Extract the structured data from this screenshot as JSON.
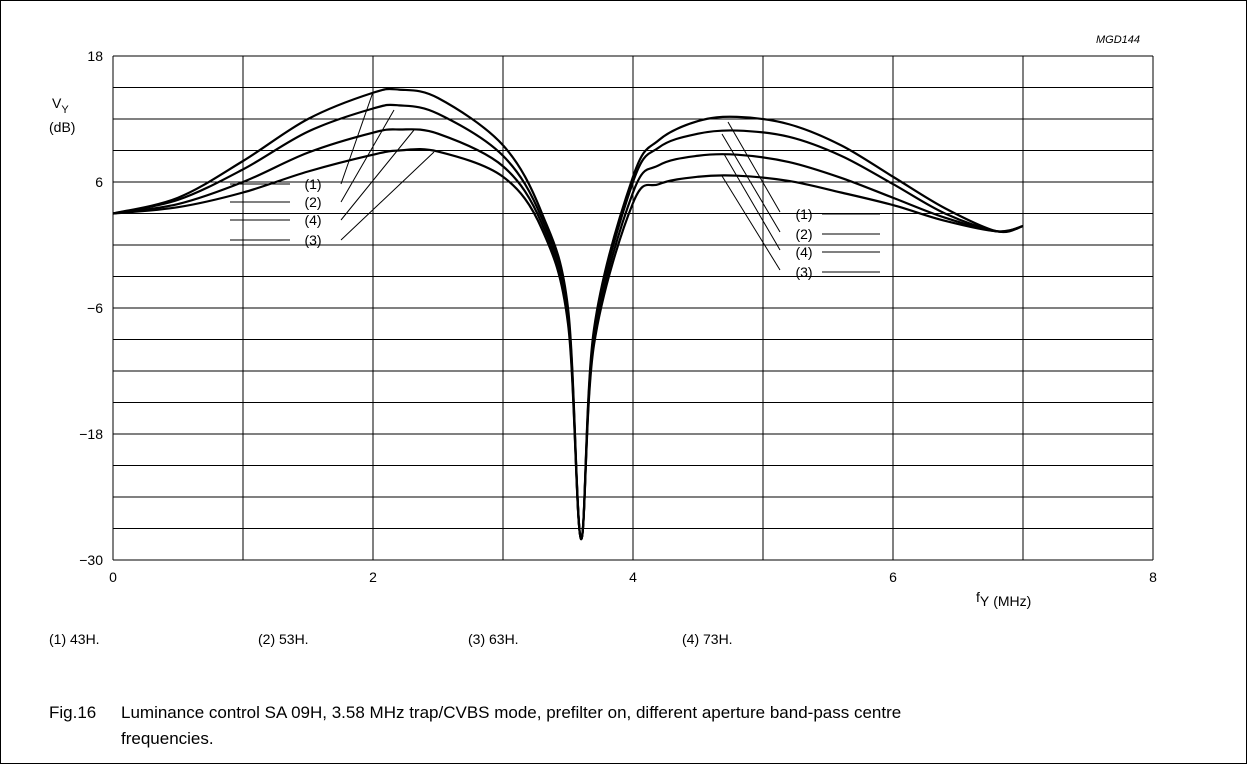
{
  "figure_code": "MGD144",
  "chart_data": {
    "type": "line",
    "ylabel": "V",
    "ylabel_sub": "Y",
    "yunit": "(dB)",
    "xlabel": "f",
    "xlabel_sub": "Y",
    "xunit": "(MHz)",
    "xlim": [
      0,
      8
    ],
    "ylim": [
      -30,
      18
    ],
    "xticks": [
      0,
      2,
      4,
      6,
      8
    ],
    "yticks": [
      -30,
      -18,
      -6,
      6,
      18
    ],
    "grid": true,
    "series": [
      {
        "label": "(1)",
        "x": [
          0,
          0.5,
          1.0,
          1.5,
          2.0,
          2.2,
          2.5,
          3.0,
          3.3,
          3.5,
          3.6,
          3.7,
          4.0,
          4.2,
          4.5,
          4.8,
          5.2,
          5.6,
          6.0,
          6.4,
          6.8,
          7.0
        ],
        "y": [
          3.0,
          4.5,
          8.0,
          12.0,
          14.5,
          14.8,
          14.0,
          9.5,
          3.0,
          -6.0,
          -28.0,
          -8.0,
          6.5,
          10.0,
          11.8,
          12.2,
          11.5,
          9.5,
          6.5,
          3.5,
          1.3,
          1.8
        ]
      },
      {
        "label": "(2)",
        "x": [
          0,
          0.5,
          1.0,
          1.5,
          2.0,
          2.2,
          2.5,
          3.0,
          3.3,
          3.5,
          3.6,
          3.7,
          4.0,
          4.2,
          4.5,
          4.8,
          5.2,
          5.6,
          6.0,
          6.4,
          6.8,
          7.0
        ],
        "y": [
          3.0,
          4.3,
          7.2,
          10.8,
          13.0,
          13.3,
          12.5,
          8.5,
          2.5,
          -6.5,
          -28.0,
          -8.5,
          6.0,
          9.3,
          10.6,
          10.9,
          10.3,
          8.5,
          5.8,
          3.0,
          1.3,
          1.8
        ]
      },
      {
        "label": "(4)",
        "x": [
          0,
          0.5,
          1.0,
          1.5,
          2.0,
          2.2,
          2.5,
          3.0,
          3.3,
          3.5,
          3.6,
          3.7,
          4.0,
          4.2,
          4.5,
          4.8,
          5.2,
          5.6,
          6.0,
          6.4,
          6.8,
          7.0
        ],
        "y": [
          3.0,
          3.9,
          6.0,
          8.8,
          10.7,
          11.0,
          10.6,
          7.5,
          2.0,
          -7.0,
          -28.0,
          -9.0,
          5.0,
          7.6,
          8.5,
          8.6,
          7.9,
          6.4,
          4.5,
          2.6,
          1.3,
          1.8
        ]
      },
      {
        "label": "(3)",
        "x": [
          0,
          0.5,
          1.0,
          1.5,
          2.0,
          2.2,
          2.5,
          3.0,
          3.3,
          3.5,
          3.6,
          3.7,
          4.0,
          4.2,
          4.5,
          4.8,
          5.2,
          5.6,
          6.0,
          6.4,
          6.8,
          7.0
        ],
        "y": [
          3.0,
          3.6,
          5.0,
          7.0,
          8.6,
          9.0,
          8.9,
          6.5,
          1.5,
          -7.5,
          -28.0,
          -9.5,
          4.0,
          5.8,
          6.5,
          6.6,
          6.1,
          5.0,
          3.8,
          2.3,
          1.3,
          1.8
        ]
      }
    ],
    "annotations_left": [
      "(1)",
      "(2)",
      "(4)",
      "(3)"
    ],
    "annotations_right": [
      "(1)",
      "(2)",
      "(4)",
      "(3)"
    ]
  },
  "notes": [
    "(1)  43H.",
    "(2)  53H.",
    "(3)  63H.",
    "(4)  73H."
  ],
  "caption_number": "Fig.16",
  "caption_text": "Luminance control SA 09H, 3.58 MHz trap/CVBS mode, prefilter on, different aperture band-pass centre",
  "caption_text_cont": "frequencies."
}
